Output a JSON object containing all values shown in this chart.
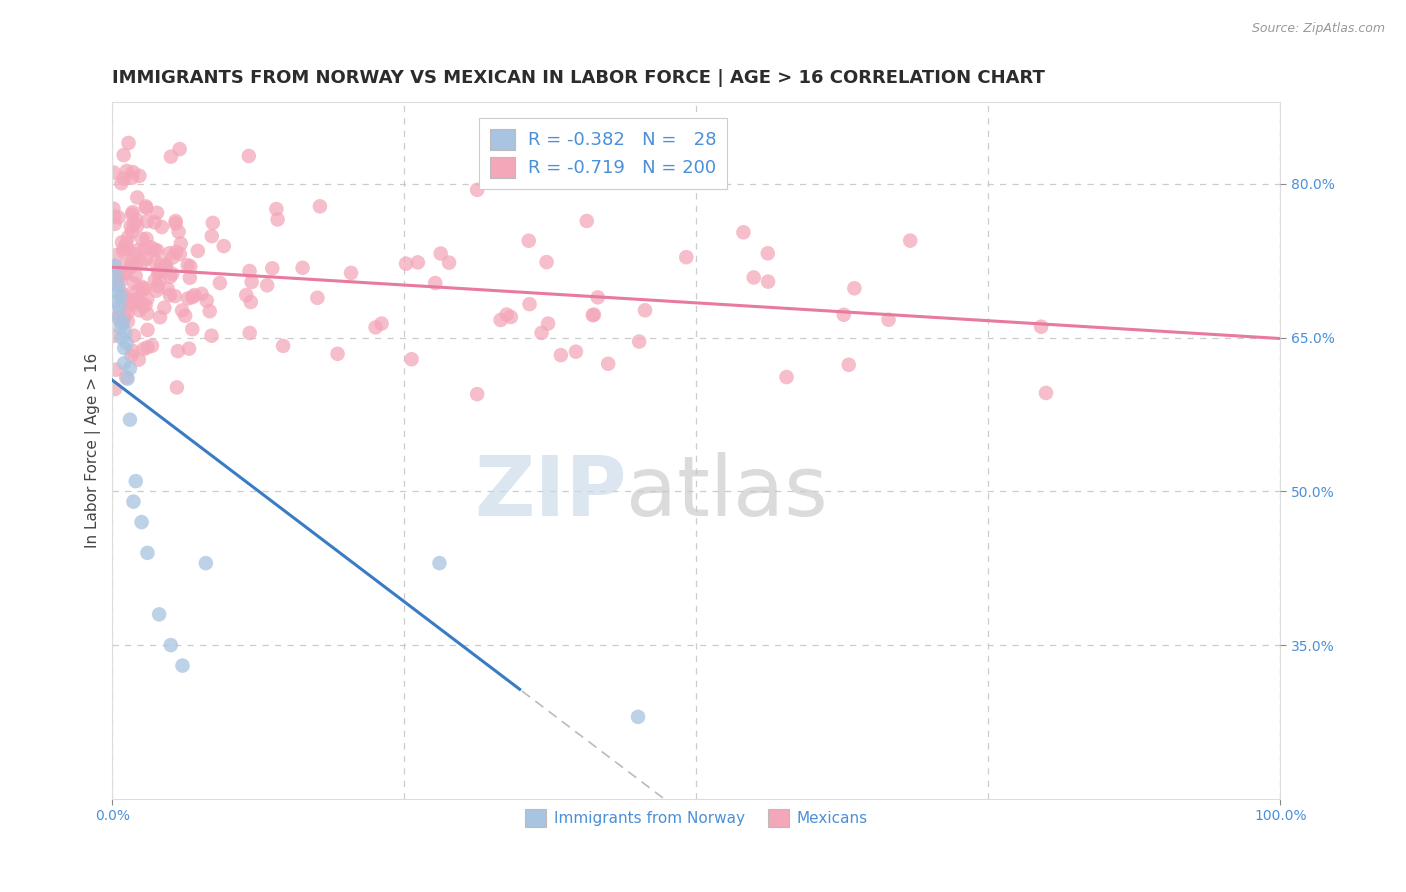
{
  "title": "IMMIGRANTS FROM NORWAY VS MEXICAN IN LABOR FORCE | AGE > 16 CORRELATION CHART",
  "source_text": "Source: ZipAtlas.com",
  "ylabel": "In Labor Force | Age > 16",
  "norway_R": -0.382,
  "norway_N": 28,
  "mexico_R": -0.719,
  "mexico_N": 200,
  "xlim": [
    0.0,
    1.0
  ],
  "ylim": [
    0.2,
    0.88
  ],
  "right_yticks": [
    0.35,
    0.5,
    0.65,
    0.8
  ],
  "right_yticklabels": [
    "35.0%",
    "50.0%",
    "65.0%",
    "80.0%"
  ],
  "norway_scatter_color": "#a8c4e0",
  "mexico_scatter_color": "#f4a7b9",
  "norway_line_color": "#3a7cc4",
  "mexico_line_color": "#e8799f",
  "norway_trend_dashed_color": "#bbbbbb",
  "background_color": "#ffffff",
  "grid_color": "#cccccc",
  "title_color": "#2c2c2c",
  "title_fontsize": 13,
  "axis_label_fontsize": 11,
  "tick_fontsize": 10,
  "legend_fontsize": 13,
  "norway_scatter_x": [
    0.002,
    0.003,
    0.003,
    0.004,
    0.005,
    0.005,
    0.006,
    0.007,
    0.007,
    0.008,
    0.009,
    0.01,
    0.01,
    0.011,
    0.012,
    0.013,
    0.015,
    0.015,
    0.018,
    0.02,
    0.025,
    0.03,
    0.04,
    0.05,
    0.06,
    0.08,
    0.28,
    0.45
  ],
  "norway_scatter_y": [
    0.72,
    0.71,
    0.695,
    0.685,
    0.7,
    0.67,
    0.68,
    0.66,
    0.69,
    0.65,
    0.665,
    0.64,
    0.625,
    0.655,
    0.645,
    0.61,
    0.57,
    0.62,
    0.49,
    0.51,
    0.47,
    0.44,
    0.38,
    0.35,
    0.33,
    0.43,
    0.43,
    0.28
  ],
  "mexico_line_start_y": 0.725,
  "mexico_line_end_y": 0.615,
  "norway_line_start_x": 0.0,
  "norway_line_start_y": 0.72,
  "norway_line_solid_end_x": 0.35,
  "norway_line_solid_end_y": 0.345,
  "norway_line_dash_end_x": 0.6,
  "norway_line_dash_end_y": 0.125
}
